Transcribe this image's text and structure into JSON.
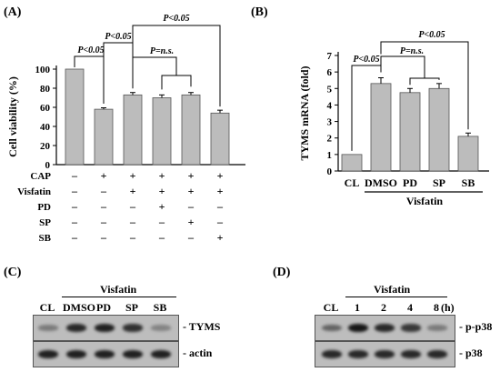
{
  "panels": {
    "A": {
      "label": "(A)"
    },
    "B": {
      "label": "(B)"
    },
    "C": {
      "label": "(C)"
    },
    "D": {
      "label": "(D)"
    }
  },
  "chart_data": [
    {
      "id": "A",
      "type": "bar",
      "ylabel": "Cell viability (%)",
      "ylim": [
        0,
        100
      ],
      "yticks": [
        0,
        20,
        40,
        60,
        80,
        100
      ],
      "values": [
        100,
        58,
        73,
        70,
        73,
        54
      ],
      "errors": [
        0,
        1.5,
        2.5,
        3,
        2.5,
        3
      ],
      "treatment_rows": [
        {
          "name": "CAP",
          "signs": [
            "–",
            "+",
            "+",
            "+",
            "+",
            "+"
          ]
        },
        {
          "name": "Visfatin",
          "signs": [
            "–",
            "–",
            "+",
            "+",
            "+",
            "+"
          ]
        },
        {
          "name": "PD",
          "signs": [
            "–",
            "–",
            "–",
            "+",
            "–",
            "–"
          ]
        },
        {
          "name": "SP",
          "signs": [
            "–",
            "–",
            "–",
            "–",
            "+",
            "–"
          ]
        },
        {
          "name": "SB",
          "signs": [
            "–",
            "–",
            "–",
            "–",
            "–",
            "+"
          ]
        }
      ],
      "annotations": [
        "P<0.05",
        "P<0.05",
        "P=n.s.",
        "P<0.05"
      ]
    },
    {
      "id": "B",
      "type": "bar",
      "ylabel": "TYMS mRNA (fold)",
      "ylim": [
        0,
        7
      ],
      "yticks": [
        0,
        1,
        2,
        3,
        4,
        5,
        6,
        7
      ],
      "categories": [
        "CL",
        "DMSO",
        "PD",
        "SP",
        "SB"
      ],
      "values": [
        1.0,
        5.3,
        4.75,
        5.0,
        2.1
      ],
      "errors": [
        0,
        0.35,
        0.25,
        0.3,
        0.2
      ],
      "group_label": "Visfatin",
      "annotations": [
        "P<0.05",
        "P=n.s.",
        "P<0.05"
      ]
    }
  ],
  "blot_C": {
    "header": "Visfatin",
    "lanes": [
      "CL",
      "DMSO",
      "PD",
      "SP",
      "SB"
    ],
    "rows": [
      {
        "name": "- TYMS",
        "intensity": [
          0.35,
          0.85,
          0.9,
          0.8,
          0.3
        ]
      },
      {
        "name": "- actin",
        "intensity": [
          0.9,
          0.9,
          0.9,
          0.9,
          0.9
        ]
      }
    ]
  },
  "blot_D": {
    "header": "Visfatin",
    "lanes": [
      "CL",
      "1",
      "2",
      "4",
      "8"
    ],
    "unit": "(h)",
    "rows": [
      {
        "name": "- p-p38",
        "intensity": [
          0.5,
          0.95,
          0.85,
          0.75,
          0.35
        ]
      },
      {
        "name": "- p38",
        "intensity": [
          0.85,
          0.85,
          0.85,
          0.85,
          0.85
        ]
      }
    ]
  }
}
